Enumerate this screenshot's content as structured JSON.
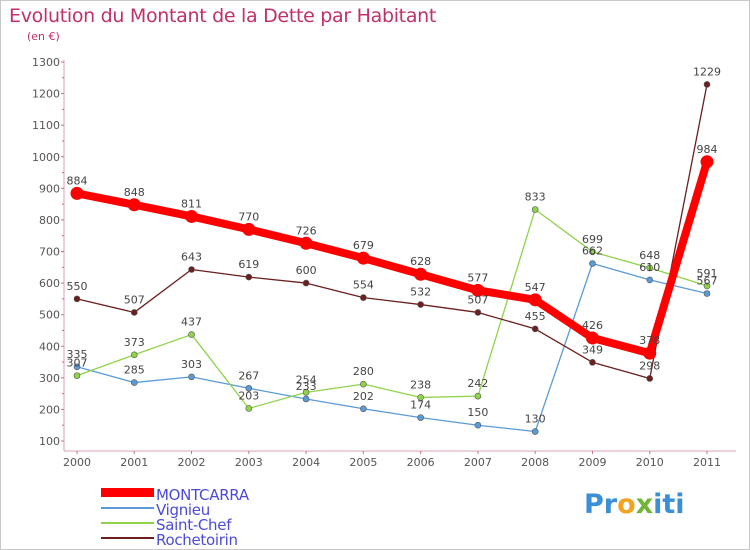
{
  "title": "Evolution du Montant de la Dette par Habitant",
  "subtitle": "(en €)",
  "logo": {
    "letters": [
      "P",
      "r",
      "o",
      "x",
      "i",
      "t",
      "i"
    ],
    "colors": [
      "#3a8fd6",
      "#3a8fd6",
      "#f2a31f",
      "#6fb536",
      "#3a8fd6",
      "#3a8fd6",
      "#3a8fd6"
    ]
  },
  "chart_data": {
    "type": "line",
    "x": [
      "2000",
      "2001",
      "2002",
      "2003",
      "2004",
      "2005",
      "2006",
      "2007",
      "2008",
      "2009",
      "2010",
      "2011"
    ],
    "ylim": [
      100,
      1300
    ],
    "yticks": [
      100,
      200,
      300,
      400,
      500,
      600,
      700,
      800,
      900,
      1000,
      1100,
      1200,
      1300
    ],
    "grid": false,
    "legend_position": "bottom-left",
    "series": [
      {
        "name": "MONTCARRA",
        "color": "#ff0000",
        "values": [
          884,
          848,
          811,
          770,
          726,
          679,
          628,
          577,
          547,
          426,
          378,
          984
        ]
      },
      {
        "name": "Vignieu",
        "color": "#5b9bd5",
        "values": [
          335,
          285,
          303,
          267,
          233,
          202,
          174,
          150,
          130,
          662,
          610,
          567
        ]
      },
      {
        "name": "Saint-Chef",
        "color": "#8fd34a",
        "values": [
          307,
          373,
          437,
          203,
          254,
          280,
          238,
          242,
          833,
          699,
          648,
          591
        ]
      },
      {
        "name": "Rochetoirin",
        "color": "#6b1f1f",
        "values": [
          550,
          507,
          643,
          619,
          600,
          554,
          532,
          507,
          455,
          349,
          298,
          1229
        ]
      }
    ]
  }
}
